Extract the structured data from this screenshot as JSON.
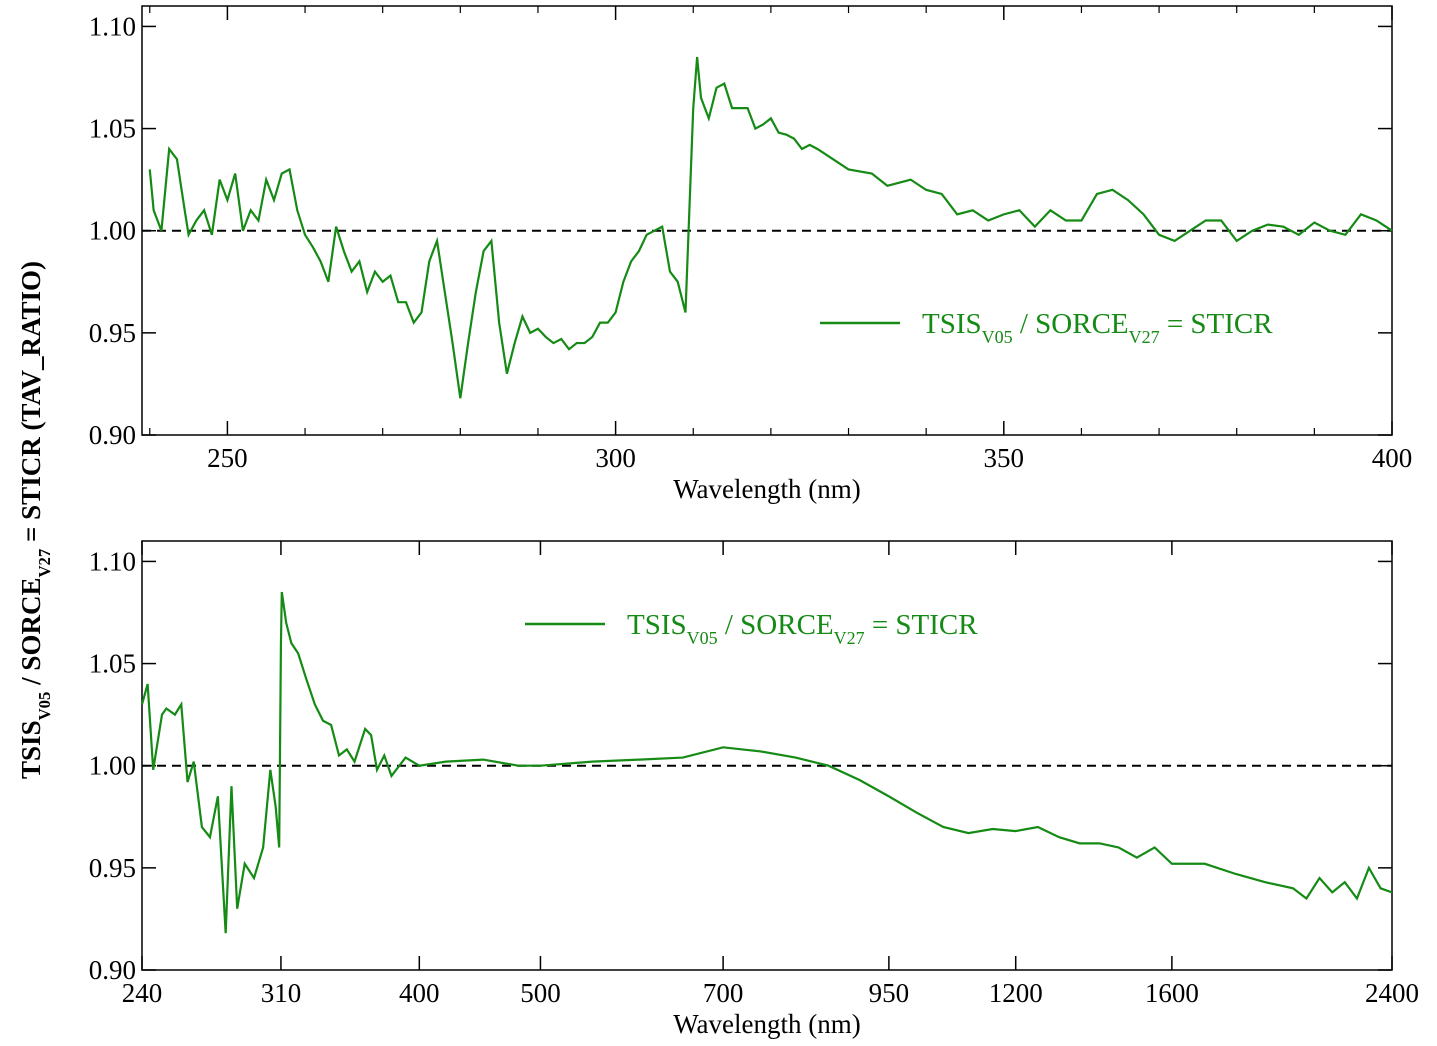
{
  "chart_data": [
    {
      "type": "line",
      "xlabel": "Wavelength (nm)",
      "ylabel": [
        "TSIS",
        "V05",
        "  /  SORCE",
        "V27",
        " = STICR (TAV_RATIO)"
      ],
      "xlim": [
        239,
        400
      ],
      "xticks": [
        250,
        300,
        350,
        400
      ],
      "xminorticks": [
        240,
        260,
        270,
        280,
        290,
        310,
        320,
        330,
        340,
        360,
        370,
        380,
        390
      ],
      "ylim": [
        0.9,
        1.11
      ],
      "yticks": [
        {
          "value": 0.9,
          "label": "0.90"
        },
        {
          "value": 0.95,
          "label": "0.95"
        },
        {
          "value": 1.0,
          "label": "1.00"
        },
        {
          "value": 1.05,
          "label": "1.05"
        },
        {
          "value": 1.1,
          "label": "1.10"
        }
      ],
      "reference_line": 1.0,
      "legend": "right",
      "x": [
        240,
        240.5,
        241.5,
        242.5,
        243.5,
        244.5,
        245,
        246,
        247,
        248,
        249,
        250,
        251,
        252,
        253,
        254,
        255,
        256,
        257,
        258,
        259,
        260,
        261,
        262,
        263,
        264,
        265,
        266,
        267,
        268,
        269,
        270,
        271,
        272,
        273,
        274,
        275,
        276,
        277,
        278,
        279,
        280,
        281,
        282,
        283,
        284,
        285,
        286,
        287,
        288,
        289,
        290,
        291,
        292,
        293,
        294,
        295,
        296,
        297,
        298,
        299,
        300,
        301,
        302,
        303,
        304,
        305,
        306,
        307,
        308,
        309,
        310,
        310.5,
        311,
        312,
        313,
        314,
        315,
        316,
        317,
        318,
        319,
        320,
        321,
        322,
        323,
        324,
        325,
        326,
        328,
        330,
        333,
        335,
        338,
        340,
        342,
        344,
        346,
        348,
        350,
        352,
        354,
        356,
        358,
        360,
        362,
        364,
        366,
        368,
        370,
        372,
        374,
        376,
        378,
        380,
        382,
        384,
        386,
        388,
        390,
        392,
        394,
        396,
        398,
        400
      ],
      "series": [
        {
          "name": [
            "TSIS",
            "V05",
            "  /  SORCE",
            "V27",
            " = STICR"
          ],
          "color": "#158a15",
          "values": [
            1.03,
            1.01,
            1.0,
            1.04,
            1.035,
            1.01,
            0.998,
            1.005,
            1.01,
            0.998,
            1.025,
            1.015,
            1.028,
            1.0,
            1.01,
            1.005,
            1.025,
            1.015,
            1.028,
            1.03,
            1.01,
            0.998,
            0.992,
            0.985,
            0.975,
            1.002,
            0.99,
            0.98,
            0.985,
            0.97,
            0.98,
            0.975,
            0.978,
            0.965,
            0.965,
            0.955,
            0.96,
            0.985,
            0.995,
            0.97,
            0.945,
            0.918,
            0.945,
            0.97,
            0.99,
            0.995,
            0.955,
            0.93,
            0.945,
            0.958,
            0.95,
            0.952,
            0.948,
            0.945,
            0.947,
            0.942,
            0.945,
            0.945,
            0.948,
            0.955,
            0.955,
            0.96,
            0.975,
            0.985,
            0.99,
            0.998,
            1.0,
            1.002,
            0.98,
            0.975,
            0.96,
            1.06,
            1.085,
            1.065,
            1.055,
            1.07,
            1.072,
            1.06,
            1.06,
            1.06,
            1.05,
            1.052,
            1.055,
            1.048,
            1.047,
            1.045,
            1.04,
            1.042,
            1.04,
            1.035,
            1.03,
            1.028,
            1.022,
            1.025,
            1.02,
            1.018,
            1.008,
            1.01,
            1.005,
            1.008,
            1.01,
            1.002,
            1.01,
            1.005,
            1.005,
            1.018,
            1.02,
            1.015,
            1.008,
            0.998,
            0.995,
            1.0,
            1.005,
            1.005,
            0.995,
            1.0,
            1.003,
            1.002,
            0.998,
            1.004,
            1.0,
            0.998,
            1.008,
            1.005,
            1.0
          ]
        }
      ]
    },
    {
      "type": "line",
      "xlabel": "Wavelength (nm)",
      "xlog": true,
      "xlim": [
        240,
        2400
      ],
      "xticks": [
        240,
        310,
        400,
        500,
        700,
        950,
        1200,
        1600,
        2400
      ],
      "ylim": [
        0.9,
        1.11
      ],
      "yticks": [
        {
          "value": 0.9,
          "label": "0.90"
        },
        {
          "value": 0.95,
          "label": "0.95"
        },
        {
          "value": 1.0,
          "label": "1.00"
        },
        {
          "value": 1.05,
          "label": "1.05"
        },
        {
          "value": 1.1,
          "label": "1.10"
        }
      ],
      "reference_line": 1.0,
      "legend": "top",
      "x": [
        240,
        242.5,
        245,
        249,
        251,
        255,
        258,
        261,
        264,
        268,
        272,
        276,
        280,
        283,
        286,
        290,
        295,
        300,
        304,
        307,
        309,
        310,
        310.5,
        313,
        316,
        320,
        325,
        330,
        335,
        340,
        345,
        350,
        355,
        362,
        366,
        370,
        375,
        380,
        390,
        400,
        420,
        450,
        480,
        500,
        550,
        600,
        650,
        700,
        750,
        800,
        850,
        900,
        950,
        1000,
        1050,
        1100,
        1150,
        1200,
        1250,
        1300,
        1350,
        1400,
        1450,
        1500,
        1550,
        1600,
        1700,
        1800,
        1900,
        2000,
        2050,
        2100,
        2150,
        2200,
        2250,
        2300,
        2350,
        2400
      ],
      "series": [
        {
          "name": [
            "TSIS",
            "V05",
            "  /  SORCE",
            "V27",
            " = STICR"
          ],
          "color": "#158a15",
          "values": [
            1.03,
            1.04,
            0.998,
            1.025,
            1.028,
            1.025,
            1.03,
            0.992,
            1.002,
            0.97,
            0.965,
            0.985,
            0.918,
            0.99,
            0.93,
            0.952,
            0.945,
            0.96,
            0.998,
            0.98,
            0.96,
            1.06,
            1.085,
            1.07,
            1.06,
            1.055,
            1.042,
            1.03,
            1.022,
            1.02,
            1.005,
            1.008,
            1.002,
            1.018,
            1.015,
            0.998,
            1.005,
            0.995,
            1.004,
            1.0,
            1.002,
            1.003,
            1.0,
            1.0,
            1.002,
            1.003,
            1.004,
            1.009,
            1.007,
            1.004,
            1.0,
            0.993,
            0.985,
            0.977,
            0.97,
            0.967,
            0.969,
            0.968,
            0.97,
            0.965,
            0.962,
            0.962,
            0.96,
            0.955,
            0.96,
            0.952,
            0.952,
            0.947,
            0.943,
            0.94,
            0.935,
            0.945,
            0.938,
            0.943,
            0.935,
            0.95,
            0.94,
            0.938
          ]
        }
      ]
    }
  ]
}
